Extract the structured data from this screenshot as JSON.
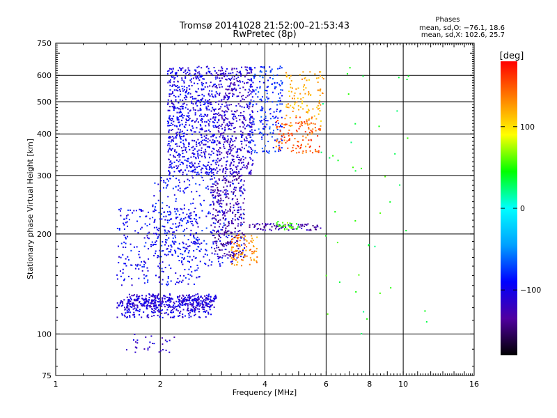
{
  "chart_data": {
    "type": "scatter",
    "title": "Tromsø 20141028 21:52:00–21:53:43",
    "subtitle": "RwPretec (8p)",
    "xlabel": "Frequency [MHz]",
    "ylabel": "Stationary phase Virtual Height [km]",
    "x_scale": "log",
    "y_scale": "log",
    "xlim": [
      1,
      16
    ],
    "ylim": [
      75,
      750
    ],
    "x_ticks": [
      1,
      2,
      4,
      6,
      8,
      10,
      16
    ],
    "y_ticks": [
      75,
      100,
      200,
      300,
      400,
      500,
      600,
      750
    ],
    "x_tick_labels": [
      "1",
      "2",
      "4",
      "6",
      "8",
      "10",
      "16"
    ],
    "y_tick_labels": [
      "75",
      "100",
      "200",
      "300",
      "400",
      "500",
      "600",
      "750"
    ],
    "x_grid": [
      2,
      4,
      6,
      8,
      10
    ],
    "y_grid": [
      100,
      200,
      300,
      400,
      500,
      600
    ],
    "grid": true,
    "legend": {
      "title": "Phases",
      "lines": [
        "mean, sd,O: −76.1, 18.6",
        "mean, sd,X: 102.6, 25.7"
      ],
      "placement": "top-right"
    },
    "colorbar": {
      "label": "[deg]",
      "range": [
        -180,
        180
      ],
      "ticks": [
        100,
        0,
        -100
      ],
      "tick_labels": [
        "100",
        "0",
        "−100"
      ],
      "colormap": [
        "#000000",
        "#5000a0",
        "#0000ff",
        "#00a0ff",
        "#00ffff",
        "#00ff00",
        "#ffff00",
        "#ff8000",
        "#ff0000"
      ]
    },
    "point_groups": [
      {
        "x": [
          1.6,
          2.9
        ],
        "y": [
          120,
          132
        ],
        "phase": -110,
        "n": 300,
        "spread": 0.025
      },
      {
        "x": [
          1.5,
          2.8
        ],
        "y": [
          112,
          128
        ],
        "phase": -105,
        "n": 260,
        "spread": 0.02
      },
      {
        "x": [
          1.5,
          2.6
        ],
        "y": [
          140,
          240
        ],
        "phase": -95,
        "n": 320,
        "spread": 0.05
      },
      {
        "x": [
          1.9,
          3.5
        ],
        "y": [
          160,
          300
        ],
        "phase": -90,
        "n": 300,
        "spread": 0.05
      },
      {
        "x": [
          2.1,
          2.9
        ],
        "y": [
          300,
          640
        ],
        "phase": -100,
        "n": 700,
        "spread": 0.06
      },
      {
        "x": [
          2.9,
          3.7
        ],
        "y": [
          300,
          640
        ],
        "phase": -115,
        "n": 500,
        "spread": 0.05
      },
      {
        "x": [
          2.8,
          3.5
        ],
        "y": [
          170,
          300
        ],
        "phase": -130,
        "n": 280,
        "spread": 0.04
      },
      {
        "x": [
          3.6,
          4.5
        ],
        "y": [
          350,
          640
        ],
        "phase": -80,
        "n": 220,
        "spread": 0.06
      },
      {
        "x": [
          3.2,
          3.8
        ],
        "y": [
          160,
          200
        ],
        "phase": 130,
        "n": 90,
        "spread": 0.03
      },
      {
        "x": [
          4.3,
          5.8
        ],
        "y": [
          350,
          450
        ],
        "phase": 150,
        "n": 120,
        "spread": 0.05
      },
      {
        "x": [
          4.6,
          5.9
        ],
        "y": [
          420,
          620
        ],
        "phase": 120,
        "n": 110,
        "spread": 0.06
      },
      {
        "x": [
          3.6,
          5.8
        ],
        "y": [
          205,
          215
        ],
        "phase": -130,
        "n": 90,
        "spread": 0.01
      },
      {
        "x": [
          4.3,
          5.0
        ],
        "y": [
          205,
          218
        ],
        "phase": 60,
        "n": 30,
        "spread": 0.01
      },
      {
        "x": [
          1.6,
          2.2
        ],
        "y": [
          88,
          100
        ],
        "phase": -110,
        "n": 30,
        "spread": 0.02
      },
      {
        "x": [
          5.8,
          12.5
        ],
        "y": [
          100,
          640
        ],
        "phase": 40,
        "n": 45,
        "spread": 0.3
      }
    ]
  }
}
